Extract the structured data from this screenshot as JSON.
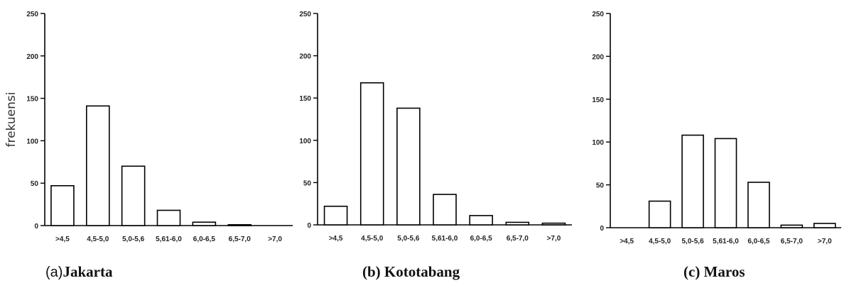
{
  "chart_data": [
    {
      "type": "bar",
      "caption_prefix": "(a)",
      "caption_name": "Jakarta",
      "ylabel": "frekuensi",
      "ylim": [
        0,
        250
      ],
      "yticks": [
        "0",
        "50",
        "100",
        "150",
        "200",
        "250"
      ],
      "categories": [
        ">4,5",
        "4,5-5,0",
        "5,0-5,6",
        "5,61-6,0",
        "6,0-6,5",
        "6,5-7,0",
        ">7,0"
      ],
      "values": [
        47,
        141,
        70,
        18,
        4,
        1,
        0
      ]
    },
    {
      "type": "bar",
      "caption_prefix": "",
      "caption_name": "(b) Kototabang",
      "ylabel": "",
      "ylim": [
        0,
        250
      ],
      "yticks": [
        "0",
        "50",
        "100",
        "150",
        "200",
        "250"
      ],
      "categories": [
        ">4,5",
        "4,5-5,0",
        "5,0-5,6",
        "5,61-6,0",
        "6,0-6,5",
        "6,5-7,0",
        ">7,0"
      ],
      "values": [
        22,
        168,
        138,
        36,
        11,
        3,
        2
      ]
    },
    {
      "type": "bar",
      "caption_prefix": "",
      "caption_name": "(c) Maros",
      "ylabel": "",
      "ylim": [
        0,
        250
      ],
      "yticks": [
        "0",
        "50",
        "100",
        "150",
        "200",
        "250"
      ],
      "categories": [
        ">4,5",
        "4,5-5,0",
        "5,0-5,6",
        "5,61-6,0",
        "6,0-6,5",
        "6,5-7,0",
        ">7,0"
      ],
      "values": [
        0,
        31,
        108,
        104,
        53,
        3,
        5
      ]
    }
  ]
}
